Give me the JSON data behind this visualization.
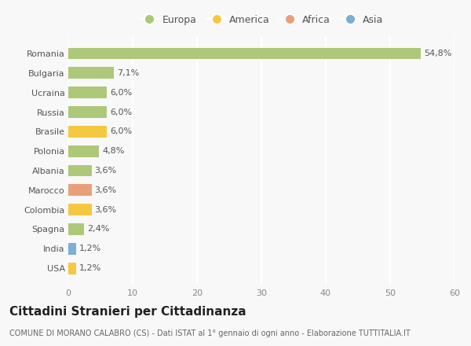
{
  "countries": [
    "Romania",
    "Bulgaria",
    "Ucraina",
    "Russia",
    "Brasile",
    "Polonia",
    "Albania",
    "Marocco",
    "Colombia",
    "Spagna",
    "India",
    "USA"
  ],
  "values": [
    54.8,
    7.1,
    6.0,
    6.0,
    6.0,
    4.8,
    3.6,
    3.6,
    3.6,
    2.4,
    1.2,
    1.2
  ],
  "labels": [
    "54,8%",
    "7,1%",
    "6,0%",
    "6,0%",
    "6,0%",
    "4,8%",
    "3,6%",
    "3,6%",
    "3,6%",
    "2,4%",
    "1,2%",
    "1,2%"
  ],
  "colors": [
    "#adc878",
    "#adc878",
    "#adc878",
    "#adc878",
    "#f5c842",
    "#adc878",
    "#adc878",
    "#e8a07a",
    "#f5c842",
    "#adc878",
    "#7bafd4",
    "#f5c842"
  ],
  "legend_labels": [
    "Europa",
    "America",
    "Africa",
    "Asia"
  ],
  "legend_colors": [
    "#adc878",
    "#f5c842",
    "#e8a07a",
    "#7bafd4"
  ],
  "title": "Cittadini Stranieri per Cittadinanza",
  "subtitle": "COMUNE DI MORANO CALABRO (CS) - Dati ISTAT al 1° gennaio di ogni anno - Elaborazione TUTTITALIA.IT",
  "xlim": [
    0,
    60
  ],
  "xticks": [
    0,
    10,
    20,
    30,
    40,
    50,
    60
  ],
  "background_color": "#f8f8f8",
  "grid_color": "#ffffff",
  "bar_height": 0.6,
  "title_fontsize": 11,
  "subtitle_fontsize": 7,
  "label_fontsize": 8,
  "tick_fontsize": 8,
  "legend_fontsize": 9
}
